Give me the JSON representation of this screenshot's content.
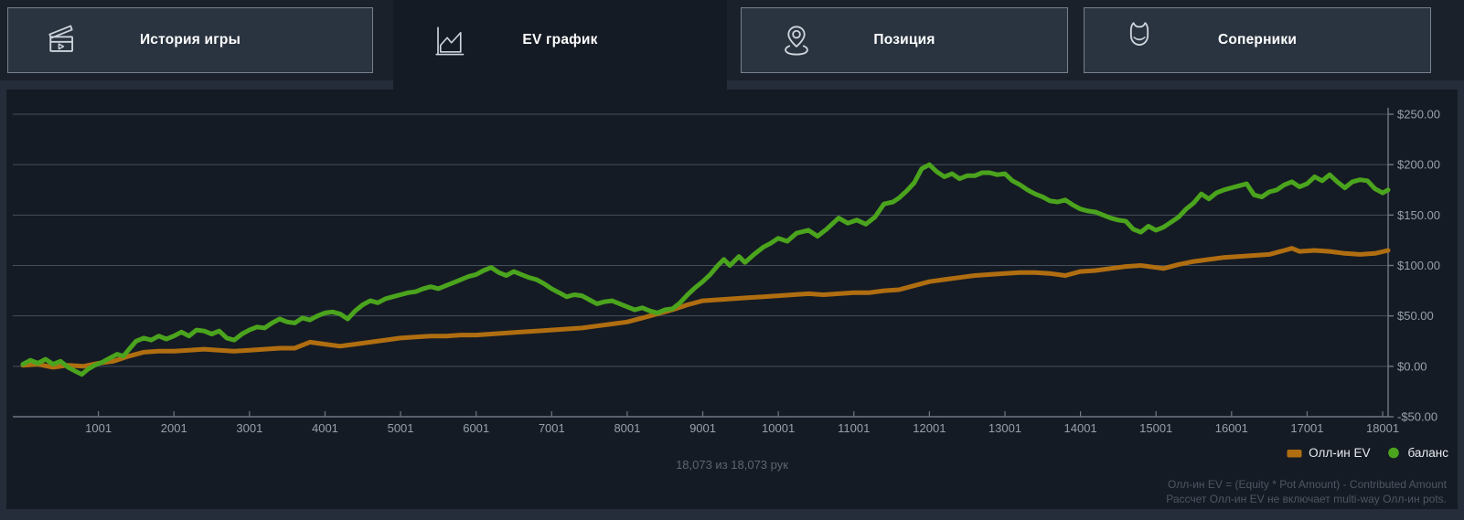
{
  "tabs": [
    {
      "label": "История игры",
      "icon": "clapperboard-icon",
      "active": false
    },
    {
      "label": "EV график",
      "icon": "area-chart-icon",
      "active": true
    },
    {
      "label": "Позиция",
      "icon": "location-pin-icon",
      "active": false
    },
    {
      "label": "Соперники",
      "icon": "opponent-devil-icon",
      "active": false
    }
  ],
  "status": {
    "hands_caption": "18,073 из 18,073 рук"
  },
  "footnotes": [
    "Олл-ин EV = (Equity * Pot Amount) - Contributed Amount",
    "Рассчет Олл-ин EV не включает multi-way Олл-ин pots."
  ],
  "colors": {
    "ev_line": "#b06e11",
    "balance_line": "#4ba41d",
    "grid": "#454e5a",
    "axis": "#6e7884",
    "tick_label": "#97a0aa"
  },
  "chart_data": {
    "type": "line",
    "title": "",
    "xlabel": "",
    "ylabel": "",
    "xlim": [
      1,
      18073
    ],
    "ylim": [
      -50,
      250
    ],
    "grid": "horizontal",
    "legend_position": "bottom-right",
    "x_ticks": [
      {
        "v": 1001,
        "label": "1001"
      },
      {
        "v": 2001,
        "label": "2001"
      },
      {
        "v": 3001,
        "label": "3001"
      },
      {
        "v": 4001,
        "label": "4001"
      },
      {
        "v": 5001,
        "label": "5001"
      },
      {
        "v": 6001,
        "label": "6001"
      },
      {
        "v": 7001,
        "label": "7001"
      },
      {
        "v": 8001,
        "label": "8001"
      },
      {
        "v": 9001,
        "label": "9001"
      },
      {
        "v": 10001,
        "label": "10001"
      },
      {
        "v": 11001,
        "label": "11001"
      },
      {
        "v": 12001,
        "label": "12001"
      },
      {
        "v": 13001,
        "label": "13001"
      },
      {
        "v": 14001,
        "label": "14001"
      },
      {
        "v": 15001,
        "label": "15001"
      },
      {
        "v": 16001,
        "label": "16001"
      },
      {
        "v": 17001,
        "label": "17001"
      },
      {
        "v": 18001,
        "label": "18001"
      }
    ],
    "y_ticks": [
      {
        "v": 250,
        "label": "$250.00"
      },
      {
        "v": 200,
        "label": "$200.00"
      },
      {
        "v": 150,
        "label": "$150.00"
      },
      {
        "v": 100,
        "label": "$100.00"
      },
      {
        "v": 50,
        "label": "$50.00"
      },
      {
        "v": 0,
        "label": "$0.00"
      },
      {
        "v": -50,
        "label": "-$50.00"
      }
    ],
    "series": [
      {
        "name": "Олл-ин EV",
        "color": "#b06e11",
        "marker": "dash",
        "points": [
          [
            1,
            1
          ],
          [
            200,
            2
          ],
          [
            400,
            -1
          ],
          [
            600,
            1
          ],
          [
            800,
            0
          ],
          [
            1000,
            3
          ],
          [
            1200,
            5
          ],
          [
            1400,
            10
          ],
          [
            1600,
            14
          ],
          [
            1800,
            15
          ],
          [
            2000,
            15
          ],
          [
            2200,
            16
          ],
          [
            2400,
            17
          ],
          [
            2600,
            16
          ],
          [
            2800,
            15
          ],
          [
            3000,
            16
          ],
          [
            3200,
            17
          ],
          [
            3400,
            18
          ],
          [
            3600,
            18
          ],
          [
            3800,
            24
          ],
          [
            4000,
            22
          ],
          [
            4200,
            20
          ],
          [
            4400,
            22
          ],
          [
            4600,
            24
          ],
          [
            4800,
            26
          ],
          [
            5000,
            28
          ],
          [
            5200,
            29
          ],
          [
            5400,
            30
          ],
          [
            5600,
            30
          ],
          [
            5800,
            31
          ],
          [
            6000,
            31
          ],
          [
            6200,
            32
          ],
          [
            6400,
            33
          ],
          [
            6600,
            34
          ],
          [
            6800,
            35
          ],
          [
            7000,
            36
          ],
          [
            7200,
            37
          ],
          [
            7400,
            38
          ],
          [
            7600,
            40
          ],
          [
            7800,
            42
          ],
          [
            8000,
            44
          ],
          [
            8200,
            48
          ],
          [
            8400,
            52
          ],
          [
            8600,
            56
          ],
          [
            8800,
            61
          ],
          [
            9000,
            65
          ],
          [
            9200,
            66
          ],
          [
            9400,
            67
          ],
          [
            9600,
            68
          ],
          [
            9800,
            69
          ],
          [
            10000,
            70
          ],
          [
            10200,
            71
          ],
          [
            10400,
            72
          ],
          [
            10600,
            71
          ],
          [
            10800,
            72
          ],
          [
            11000,
            73
          ],
          [
            11200,
            73
          ],
          [
            11400,
            75
          ],
          [
            11600,
            76
          ],
          [
            11800,
            80
          ],
          [
            12000,
            84
          ],
          [
            12200,
            86
          ],
          [
            12400,
            88
          ],
          [
            12600,
            90
          ],
          [
            12800,
            91
          ],
          [
            13000,
            92
          ],
          [
            13200,
            93
          ],
          [
            13400,
            93
          ],
          [
            13600,
            92
          ],
          [
            13800,
            90
          ],
          [
            14000,
            94
          ],
          [
            14200,
            95
          ],
          [
            14400,
            97
          ],
          [
            14600,
            99
          ],
          [
            14800,
            100
          ],
          [
            15000,
            98
          ],
          [
            15100,
            97
          ],
          [
            15300,
            101
          ],
          [
            15500,
            104
          ],
          [
            15700,
            106
          ],
          [
            15900,
            108
          ],
          [
            16100,
            109
          ],
          [
            16300,
            110
          ],
          [
            16500,
            111
          ],
          [
            16700,
            115
          ],
          [
            16800,
            117
          ],
          [
            16900,
            114
          ],
          [
            17100,
            115
          ],
          [
            17300,
            114
          ],
          [
            17500,
            112
          ],
          [
            17700,
            111
          ],
          [
            17900,
            112
          ],
          [
            18073,
            115
          ]
        ]
      },
      {
        "name": "баланс",
        "color": "#4ba41d",
        "marker": "dot",
        "points": [
          [
            1,
            2
          ],
          [
            100,
            6
          ],
          [
            200,
            3
          ],
          [
            300,
            7
          ],
          [
            400,
            2
          ],
          [
            500,
            5
          ],
          [
            600,
            -1
          ],
          [
            700,
            -5
          ],
          [
            780,
            -8
          ],
          [
            860,
            -3
          ],
          [
            950,
            1
          ],
          [
            1050,
            4
          ],
          [
            1150,
            8
          ],
          [
            1250,
            12
          ],
          [
            1330,
            10
          ],
          [
            1420,
            18
          ],
          [
            1500,
            25
          ],
          [
            1600,
            28
          ],
          [
            1700,
            26
          ],
          [
            1800,
            30
          ],
          [
            1900,
            27
          ],
          [
            2000,
            30
          ],
          [
            2100,
            34
          ],
          [
            2200,
            30
          ],
          [
            2300,
            36
          ],
          [
            2400,
            35
          ],
          [
            2500,
            32
          ],
          [
            2600,
            35
          ],
          [
            2700,
            28
          ],
          [
            2800,
            26
          ],
          [
            2900,
            32
          ],
          [
            3000,
            36
          ],
          [
            3100,
            39
          ],
          [
            3200,
            38
          ],
          [
            3300,
            43
          ],
          [
            3400,
            47
          ],
          [
            3500,
            44
          ],
          [
            3600,
            43
          ],
          [
            3700,
            48
          ],
          [
            3800,
            46
          ],
          [
            3900,
            50
          ],
          [
            4000,
            53
          ],
          [
            4100,
            54
          ],
          [
            4200,
            52
          ],
          [
            4300,
            47
          ],
          [
            4400,
            55
          ],
          [
            4500,
            61
          ],
          [
            4600,
            65
          ],
          [
            4700,
            63
          ],
          [
            4800,
            67
          ],
          [
            4900,
            69
          ],
          [
            5000,
            71
          ],
          [
            5100,
            73
          ],
          [
            5200,
            74
          ],
          [
            5300,
            77
          ],
          [
            5400,
            79
          ],
          [
            5500,
            77
          ],
          [
            5600,
            80
          ],
          [
            5700,
            83
          ],
          [
            5800,
            86
          ],
          [
            5900,
            89
          ],
          [
            6000,
            91
          ],
          [
            6100,
            95
          ],
          [
            6200,
            98
          ],
          [
            6300,
            93
          ],
          [
            6400,
            90
          ],
          [
            6500,
            94
          ],
          [
            6600,
            91
          ],
          [
            6700,
            88
          ],
          [
            6800,
            86
          ],
          [
            6900,
            82
          ],
          [
            7000,
            77
          ],
          [
            7100,
            73
          ],
          [
            7200,
            69
          ],
          [
            7300,
            71
          ],
          [
            7400,
            70
          ],
          [
            7500,
            66
          ],
          [
            7600,
            62
          ],
          [
            7700,
            64
          ],
          [
            7800,
            65
          ],
          [
            7900,
            62
          ],
          [
            8000,
            59
          ],
          [
            8100,
            56
          ],
          [
            8200,
            58
          ],
          [
            8300,
            55
          ],
          [
            8400,
            53
          ],
          [
            8500,
            56
          ],
          [
            8600,
            57
          ],
          [
            8700,
            63
          ],
          [
            8800,
            71
          ],
          [
            8900,
            78
          ],
          [
            9000,
            84
          ],
          [
            9100,
            91
          ],
          [
            9200,
            100
          ],
          [
            9280,
            106
          ],
          [
            9360,
            100
          ],
          [
            9480,
            109
          ],
          [
            9560,
            103
          ],
          [
            9680,
            111
          ],
          [
            9800,
            118
          ],
          [
            9900,
            122
          ],
          [
            10000,
            127
          ],
          [
            10120,
            124
          ],
          [
            10240,
            132
          ],
          [
            10400,
            135
          ],
          [
            10520,
            129
          ],
          [
            10640,
            136
          ],
          [
            10800,
            147
          ],
          [
            10920,
            142
          ],
          [
            11040,
            145
          ],
          [
            11160,
            141
          ],
          [
            11280,
            148
          ],
          [
            11400,
            161
          ],
          [
            11520,
            163
          ],
          [
            11600,
            167
          ],
          [
            11700,
            174
          ],
          [
            11800,
            182
          ],
          [
            11900,
            196
          ],
          [
            12000,
            200
          ],
          [
            12100,
            193
          ],
          [
            12200,
            188
          ],
          [
            12300,
            191
          ],
          [
            12400,
            186
          ],
          [
            12500,
            189
          ],
          [
            12600,
            189
          ],
          [
            12700,
            192
          ],
          [
            12800,
            192
          ],
          [
            12900,
            190
          ],
          [
            13000,
            191
          ],
          [
            13100,
            184
          ],
          [
            13200,
            180
          ],
          [
            13300,
            175
          ],
          [
            13400,
            171
          ],
          [
            13500,
            168
          ],
          [
            13600,
            164
          ],
          [
            13700,
            163
          ],
          [
            13800,
            165
          ],
          [
            13900,
            160
          ],
          [
            14000,
            156
          ],
          [
            14100,
            154
          ],
          [
            14200,
            153
          ],
          [
            14300,
            150
          ],
          [
            14400,
            147
          ],
          [
            14500,
            145
          ],
          [
            14600,
            144
          ],
          [
            14700,
            136
          ],
          [
            14800,
            133
          ],
          [
            14900,
            139
          ],
          [
            15000,
            135
          ],
          [
            15100,
            138
          ],
          [
            15200,
            143
          ],
          [
            15300,
            148
          ],
          [
            15400,
            156
          ],
          [
            15500,
            162
          ],
          [
            15600,
            171
          ],
          [
            15700,
            166
          ],
          [
            15800,
            172
          ],
          [
            15900,
            175
          ],
          [
            16000,
            177
          ],
          [
            16100,
            179
          ],
          [
            16200,
            181
          ],
          [
            16300,
            170
          ],
          [
            16400,
            168
          ],
          [
            16500,
            173
          ],
          [
            16600,
            175
          ],
          [
            16700,
            180
          ],
          [
            16800,
            183
          ],
          [
            16900,
            178
          ],
          [
            17000,
            181
          ],
          [
            17100,
            188
          ],
          [
            17200,
            184
          ],
          [
            17300,
            190
          ],
          [
            17400,
            183
          ],
          [
            17500,
            177
          ],
          [
            17600,
            183
          ],
          [
            17700,
            185
          ],
          [
            17800,
            184
          ],
          [
            17900,
            176
          ],
          [
            18000,
            172
          ],
          [
            18073,
            175
          ]
        ]
      }
    ]
  }
}
